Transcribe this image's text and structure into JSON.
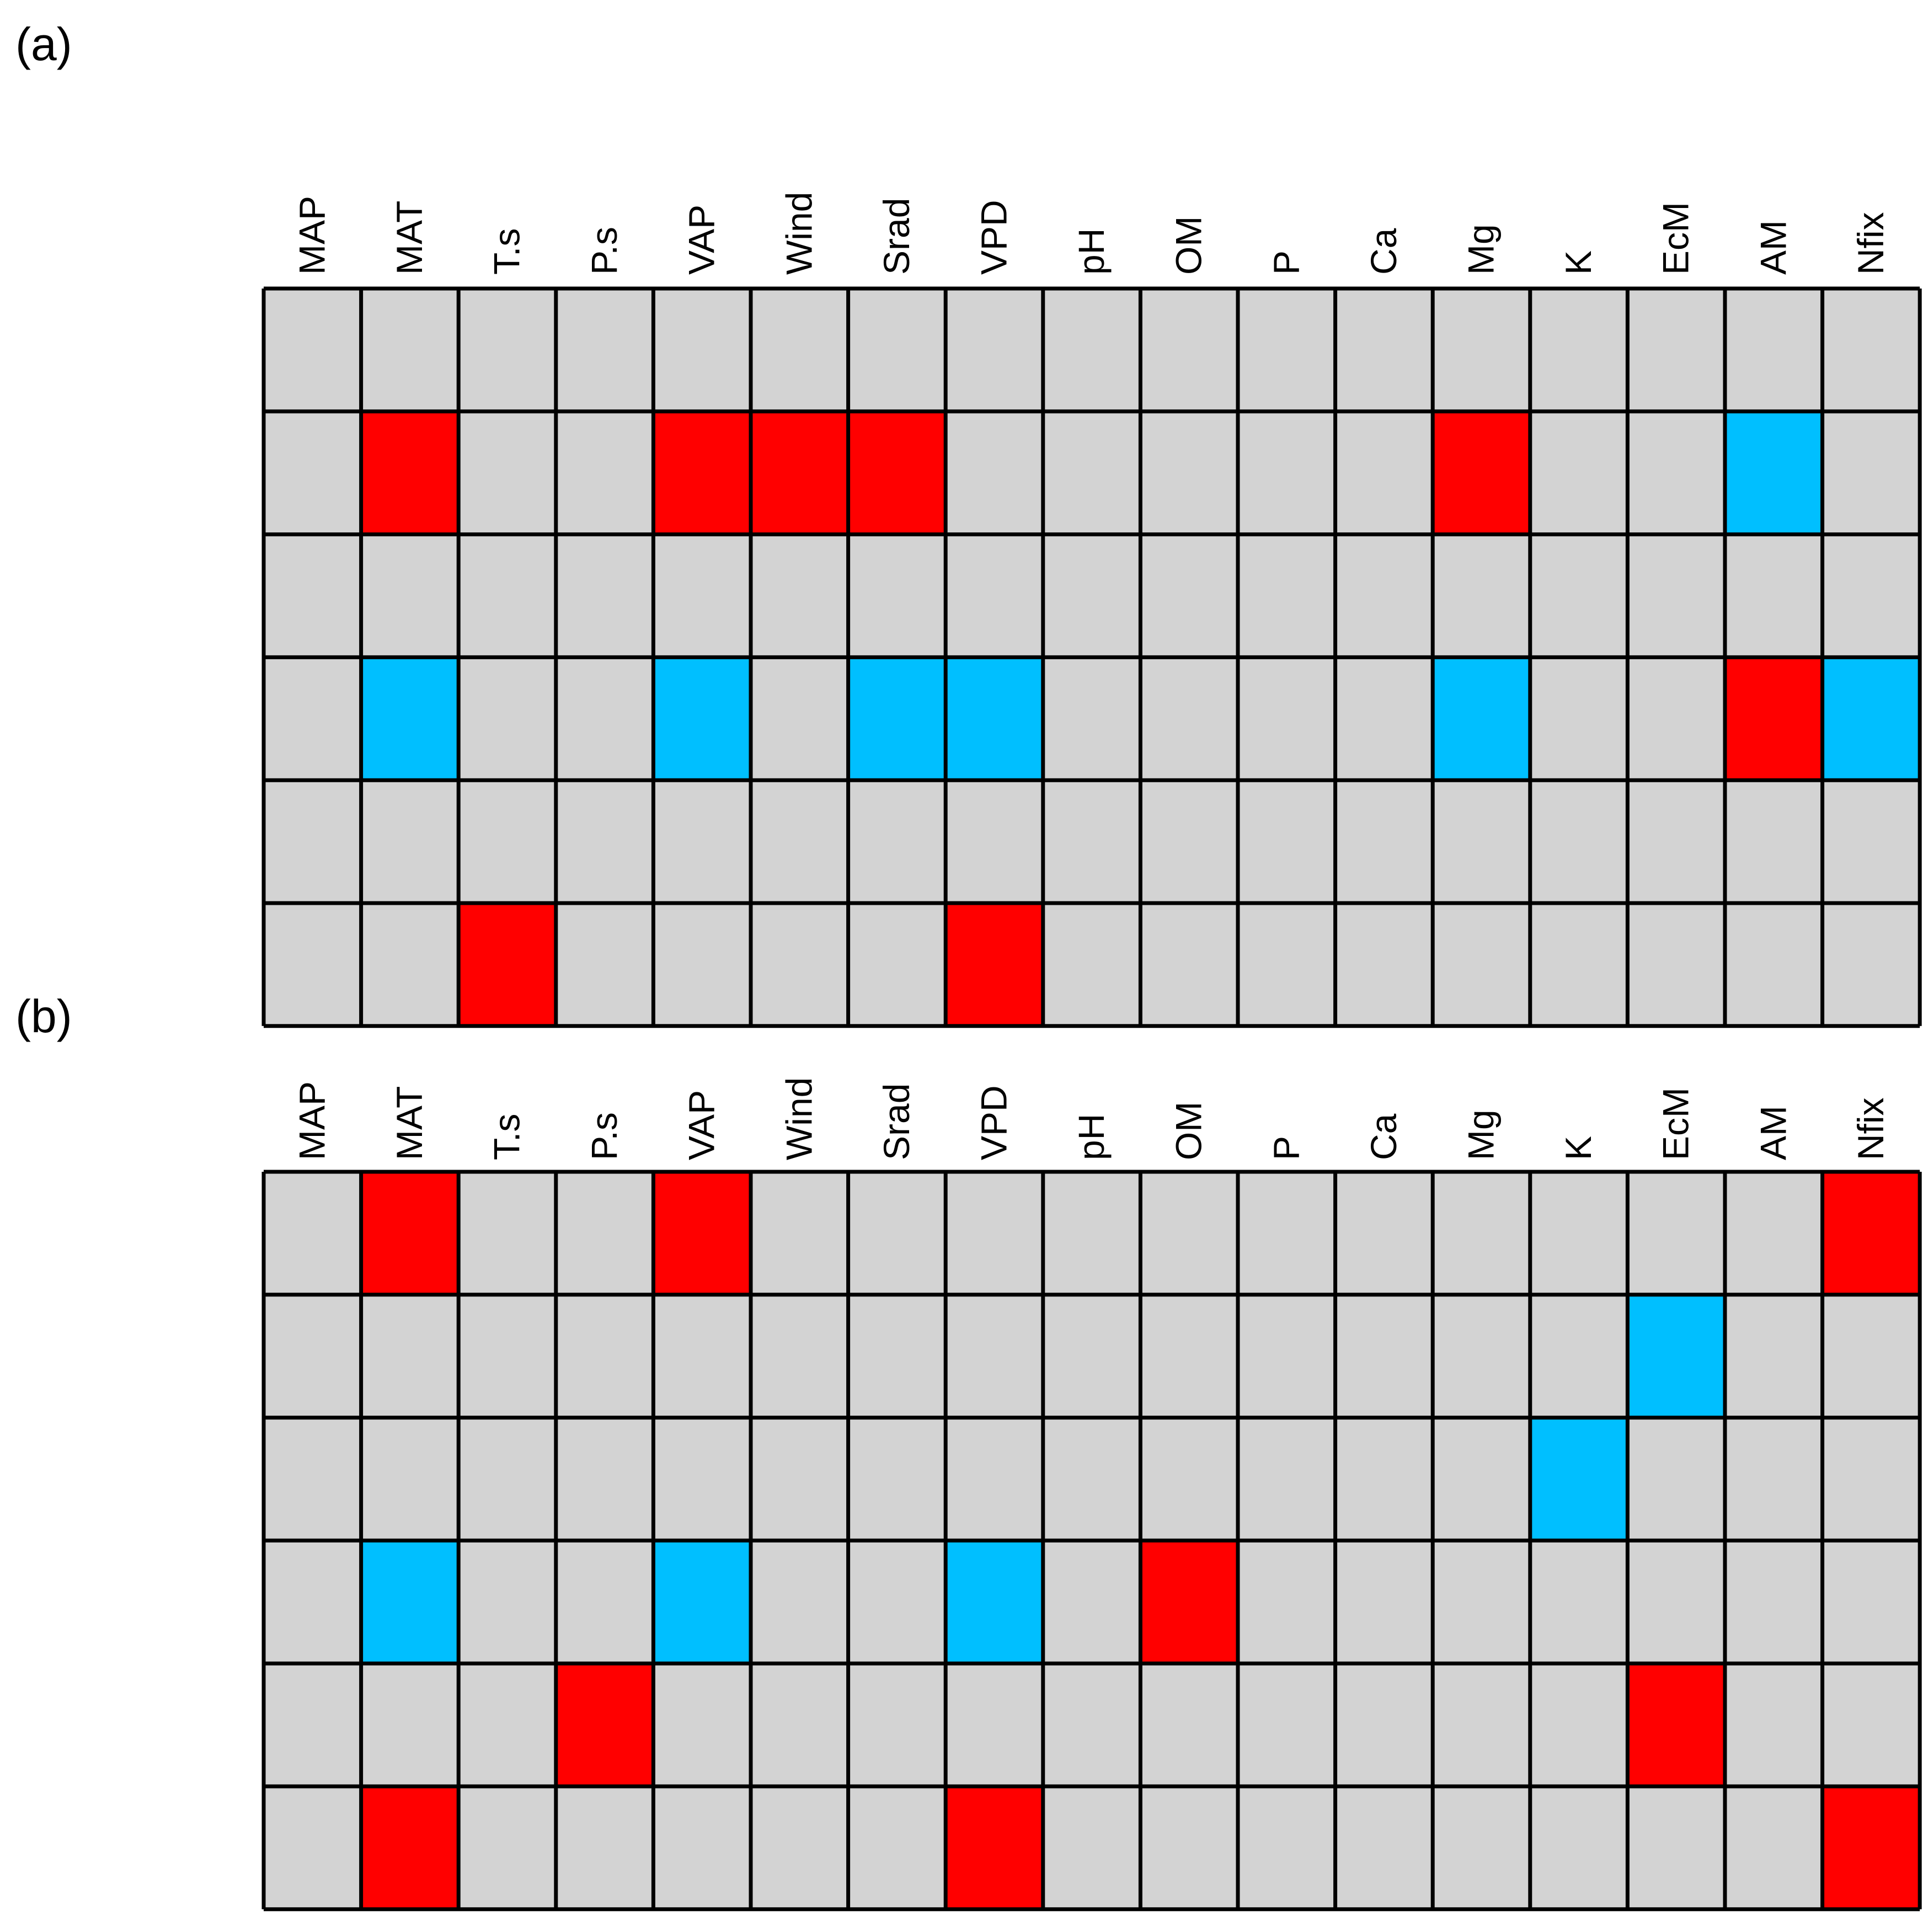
{
  "colors": {
    "neutral": "#d3d3d3",
    "positive": "#ff0000",
    "negative": "#00bfff",
    "gridline": "#000000"
  },
  "chart_data": [
    {
      "type": "heatmap",
      "panel_label": "(a)",
      "columns": [
        "MAP",
        "MAT",
        "T.s",
        "P.s",
        "VAP",
        "Wind",
        "Srad",
        "VPD",
        "pH",
        "OM",
        "P",
        "Ca",
        "Mg",
        "K",
        "EcM",
        "AM",
        "Nfix"
      ],
      "legend": {
        "0": "neutral",
        "1": "positive",
        "-1": "negative"
      },
      "cells": [
        [
          0,
          0,
          0,
          0,
          0,
          0,
          0,
          0,
          0,
          0,
          0,
          0,
          0,
          0,
          0,
          0,
          0
        ],
        [
          0,
          1,
          0,
          0,
          1,
          1,
          1,
          0,
          0,
          0,
          0,
          0,
          1,
          0,
          0,
          -1,
          0
        ],
        [
          0,
          0,
          0,
          0,
          0,
          0,
          0,
          0,
          0,
          0,
          0,
          0,
          0,
          0,
          0,
          0,
          0
        ],
        [
          0,
          -1,
          0,
          0,
          -1,
          0,
          -1,
          -1,
          0,
          0,
          0,
          0,
          -1,
          0,
          0,
          1,
          -1
        ],
        [
          0,
          0,
          0,
          0,
          0,
          0,
          0,
          0,
          0,
          0,
          0,
          0,
          0,
          0,
          0,
          0,
          0
        ],
        [
          0,
          0,
          1,
          0,
          0,
          0,
          0,
          1,
          0,
          0,
          0,
          0,
          0,
          0,
          0,
          0,
          0
        ]
      ]
    },
    {
      "type": "heatmap",
      "panel_label": "(b)",
      "columns": [
        "MAP",
        "MAT",
        "T.s",
        "P.s",
        "VAP",
        "Wind",
        "Srad",
        "VPD",
        "pH",
        "OM",
        "P",
        "Ca",
        "Mg",
        "K",
        "EcM",
        "AM",
        "Nfix"
      ],
      "legend": {
        "0": "neutral",
        "1": "positive",
        "-1": "negative"
      },
      "cells": [
        [
          0,
          1,
          0,
          0,
          1,
          0,
          0,
          0,
          0,
          0,
          0,
          0,
          0,
          0,
          0,
          0,
          1
        ],
        [
          0,
          0,
          0,
          0,
          0,
          0,
          0,
          0,
          0,
          0,
          0,
          0,
          0,
          0,
          -1,
          0,
          0
        ],
        [
          0,
          0,
          0,
          0,
          0,
          0,
          0,
          0,
          0,
          0,
          0,
          0,
          0,
          -1,
          0,
          0,
          0
        ],
        [
          0,
          -1,
          0,
          0,
          -1,
          0,
          0,
          -1,
          0,
          1,
          0,
          0,
          0,
          0,
          0,
          0,
          0
        ],
        [
          0,
          0,
          0,
          1,
          0,
          0,
          0,
          0,
          0,
          0,
          0,
          0,
          0,
          0,
          1,
          0,
          0
        ],
        [
          0,
          1,
          0,
          0,
          0,
          0,
          0,
          1,
          0,
          0,
          0,
          0,
          0,
          0,
          0,
          0,
          1
        ]
      ]
    }
  ]
}
